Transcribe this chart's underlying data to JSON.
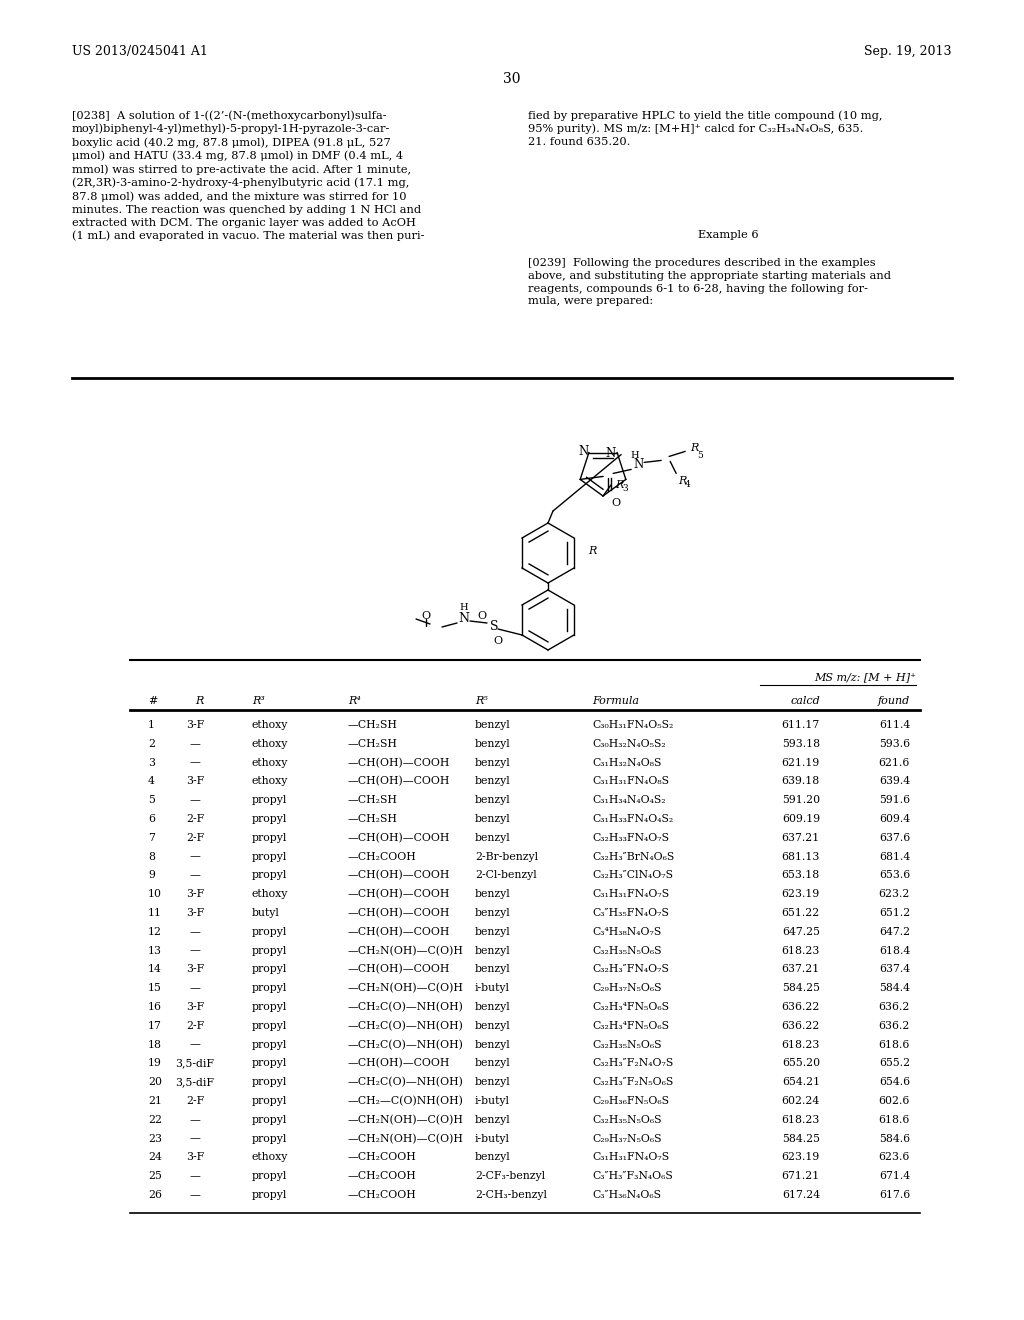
{
  "page_header_left": "US 2013/0245041 A1",
  "page_header_right": "Sep. 19, 2013",
  "page_number": "30",
  "para_238_left": "[0238]  A solution of 1-((2’-(N-(methoxycarbonyl)sulfa-\nmoyl)biphenyl-4-yl)methyl)-5-propyl-1H-pyrazole-3-car-\nboxylic acid (40.2 mg, 87.8 μmol), DIPEA (91.8 μL, 527\nμmol) and HATU (33.4 mg, 87.8 μmol) in DMF (0.4 mL, 4\nmmol) was stirred to pre-activate the acid. After 1 minute,\n(2R,3R)-3-amino-2-hydroxy-4-phenylbutyric acid (17.1 mg,\n87.8 μmol) was added, and the mixture was stirred for 10\nminutes. The reaction was quenched by adding 1 N HCl and\nextracted with DCM. The organic layer was added to AcOH\n(1 mL) and evaporated in vacuo. The material was then puri-",
  "para_238_right": "fied by preparative HPLC to yield the title compound (10 mg,\n95% purity). MS m/z: [M+H]⁺ calcd for C₃₂H₃₄N₄O₈S, 635.\n21. found 635.20.",
  "example6_title": "Example 6",
  "para_239": "[0239]  Following the procedures described in the examples\nabove, and substituting the appropriate starting materials and\nreagents, compounds 6-1 to 6-28, having the following for-\nmula, were prepared:",
  "table_ms_header": "MS m/z: [M + H]⁺",
  "col_headers": [
    "#",
    "R",
    "R³",
    "R⁴",
    "R⁵",
    "Formula",
    "calcd",
    "found"
  ],
  "rows": [
    [
      "1",
      "3-F",
      "ethoxy",
      "—CH₂SH",
      "benzyl",
      "C₃₀H₃₁FN₄O₅S₂",
      "611.17",
      "611.4"
    ],
    [
      "2",
      "—",
      "ethoxy",
      "—CH₂SH",
      "benzyl",
      "C₃₀H₃₂N₄O₅S₂",
      "593.18",
      "593.6"
    ],
    [
      "3",
      "—",
      "ethoxy",
      "—CH(OH)—COOH",
      "benzyl",
      "C₃₁H₃₂N₄O₈S",
      "621.19",
      "621.6"
    ],
    [
      "4",
      "3-F",
      "ethoxy",
      "—CH(OH)—COOH",
      "benzyl",
      "C₃₁H₃₁FN₄O₈S",
      "639.18",
      "639.4"
    ],
    [
      "5",
      "—",
      "propyl",
      "—CH₂SH",
      "benzyl",
      "C₃₁H₃₄N₄O₄S₂",
      "591.20",
      "591.6"
    ],
    [
      "6",
      "2-F",
      "propyl",
      "—CH₂SH",
      "benzyl",
      "C₃₁H₃₃FN₄O₄S₂",
      "609.19",
      "609.4"
    ],
    [
      "7",
      "2-F",
      "propyl",
      "—CH(OH)—COOH",
      "benzyl",
      "C₃₂H₃₃FN₄O₇S",
      "637.21",
      "637.6"
    ],
    [
      "8",
      "—",
      "propyl",
      "—CH₂COOH",
      "2-Br-benzyl",
      "C₃₂H₃″BrN₄O₆S",
      "681.13",
      "681.4"
    ],
    [
      "9",
      "—",
      "propyl",
      "—CH(OH)—COOH",
      "2-Cl-benzyl",
      "C₃₂H₃″ClN₄O₇S",
      "653.18",
      "653.6"
    ],
    [
      "10",
      "3-F",
      "ethoxy",
      "—CH(OH)—COOH",
      "benzyl",
      "C₃₁H₃₁FN₄O₇S",
      "623.19",
      "623.2"
    ],
    [
      "11",
      "3-F",
      "butyl",
      "—CH(OH)—COOH",
      "benzyl",
      "C₃″H₃₅FN₄O₇S",
      "651.22",
      "651.2"
    ],
    [
      "12",
      "—",
      "propyl",
      "—CH(OH)—COOH",
      "benzyl",
      "C₃⁴H₃₈N₄O₇S",
      "647.25",
      "647.2"
    ],
    [
      "13",
      "—",
      "propyl",
      "—CH₂N(OH)—C(O)H",
      "benzyl",
      "C₃₂H₃₅N₅O₆S",
      "618.23",
      "618.4"
    ],
    [
      "14",
      "3-F",
      "propyl",
      "—CH(OH)—COOH",
      "benzyl",
      "C₃₂H₃″FN₄O₇S",
      "637.21",
      "637.4"
    ],
    [
      "15",
      "—",
      "propyl",
      "—CH₂N(OH)—C(O)H",
      "i-butyl",
      "C₂₉H₃₇N₅O₆S",
      "584.25",
      "584.4"
    ],
    [
      "16",
      "3-F",
      "propyl",
      "—CH₂C(O)—NH(OH)",
      "benzyl",
      "C₃₂H₃⁴FN₅O₆S",
      "636.22",
      "636.2"
    ],
    [
      "17",
      "2-F",
      "propyl",
      "—CH₂C(O)—NH(OH)",
      "benzyl",
      "C₃₂H₃⁴FN₅O₆S",
      "636.22",
      "636.2"
    ],
    [
      "18",
      "—",
      "propyl",
      "—CH₂C(O)—NH(OH)",
      "benzyl",
      "C₃₂H₃₅N₅O₆S",
      "618.23",
      "618.6"
    ],
    [
      "19",
      "3,5-diF",
      "propyl",
      "—CH(OH)—COOH",
      "benzyl",
      "C₃₂H₃″F₂N₄O₇S",
      "655.20",
      "655.2"
    ],
    [
      "20",
      "3,5-diF",
      "propyl",
      "—CH₂C(O)—NH(OH)",
      "benzyl",
      "C₃₂H₃″F₂N₅O₆S",
      "654.21",
      "654.6"
    ],
    [
      "21",
      "2-F",
      "propyl",
      "—CH₂—C(O)NH(OH)",
      "i-butyl",
      "C₂₉H₃₆FN₅O₆S",
      "602.24",
      "602.6"
    ],
    [
      "22",
      "—",
      "propyl",
      "—CH₂N(OH)—C(O)H",
      "benzyl",
      "C₃₂H₃₅N₅O₆S",
      "618.23",
      "618.6"
    ],
    [
      "23",
      "—",
      "propyl",
      "—CH₂N(OH)—C(O)H",
      "i-butyl",
      "C₂₉H₃₇N₅O₆S",
      "584.25",
      "584.6"
    ],
    [
      "24",
      "3-F",
      "ethoxy",
      "—CH₂COOH",
      "benzyl",
      "C₃₁H₃₁FN₄O₇S",
      "623.19",
      "623.6"
    ],
    [
      "25",
      "—",
      "propyl",
      "—CH₂COOH",
      "2-CF₃-benzyl",
      "C₃″H₃″F₃N₄O₆S",
      "671.21",
      "671.4"
    ],
    [
      "26",
      "—",
      "propyl",
      "—CH₂COOH",
      "2-CH₃-benzyl",
      "C₃″H₃₆N₄O₆S",
      "617.24",
      "617.6"
    ]
  ],
  "bg": "#ffffff",
  "fg": "#000000"
}
